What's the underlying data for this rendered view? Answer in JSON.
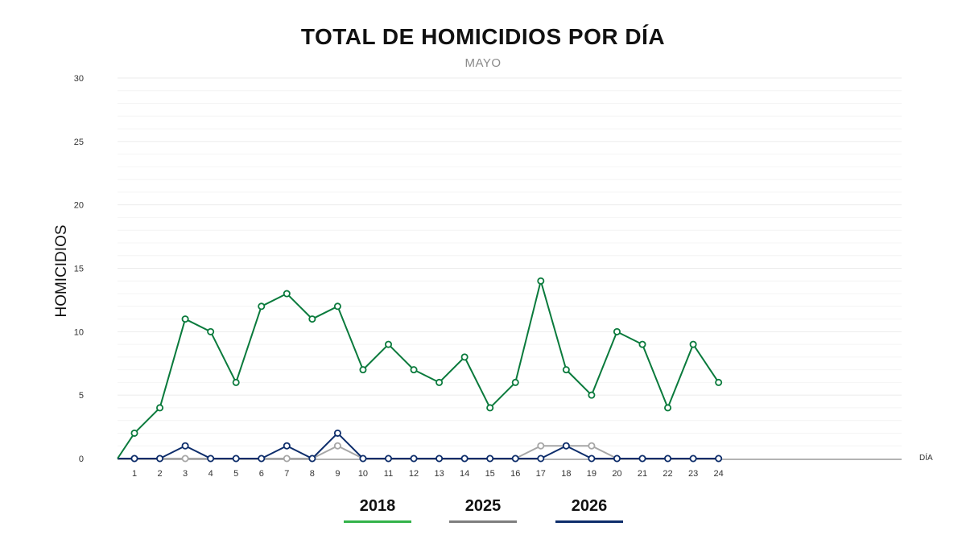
{
  "chart_data": {
    "type": "line",
    "title": "TOTAL DE HOMICIDIOS POR DÍA",
    "subtitle": "MAYO",
    "xlabel": "DÍA",
    "ylabel": "HOMICIDIOS",
    "x": [
      1,
      2,
      3,
      4,
      5,
      6,
      7,
      8,
      9,
      10,
      11,
      12,
      13,
      14,
      15,
      16,
      17,
      18,
      19,
      20,
      21,
      22,
      23,
      24
    ],
    "ylim": [
      0,
      30
    ],
    "yticks": [
      0,
      5,
      10,
      15,
      20,
      25,
      30
    ],
    "grid": true,
    "legend_position": "bottom-center",
    "series": [
      {
        "name": "2018",
        "color": "#0a7a3c",
        "legend_color": "#33b34a",
        "values": [
          2,
          4,
          11,
          10,
          6,
          12,
          13,
          11,
          12,
          7,
          9,
          7,
          6,
          8,
          4,
          6,
          14,
          7,
          5,
          10,
          9,
          4,
          9,
          6
        ]
      },
      {
        "name": "2025",
        "color": "#a6a6a6",
        "legend_color": "#7f7f7f",
        "values": [
          0,
          0,
          0,
          0,
          0,
          0,
          0,
          0,
          1,
          0,
          0,
          0,
          0,
          0,
          0,
          0,
          1,
          1,
          1,
          0,
          0,
          0,
          0,
          0
        ]
      },
      {
        "name": "2026",
        "color": "#0d2d6b",
        "legend_color": "#0d2d6b",
        "values": [
          0,
          0,
          1,
          0,
          0,
          0,
          1,
          0,
          2,
          0,
          0,
          0,
          0,
          0,
          0,
          0,
          0,
          1,
          0,
          0,
          0,
          0,
          0,
          0
        ]
      }
    ]
  }
}
